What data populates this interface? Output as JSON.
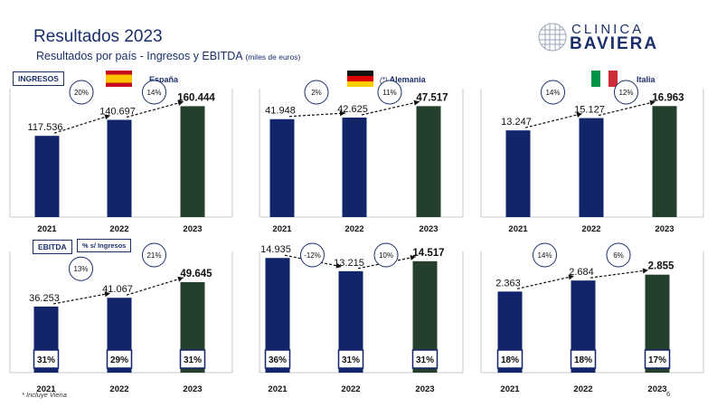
{
  "header": {
    "title": "Resultados 2023",
    "subtitle": "Resultados por país - Ingresos y EBITDA",
    "subtitle_unit": "(miles de euros)",
    "logo_line1": "CLINICA",
    "logo_line2": "BAVIERA"
  },
  "section_tags": {
    "ingresos": "INGRESOS",
    "ebitda": "EBITDA",
    "ebitda_pct": "% s/ Ingresos"
  },
  "countries": {
    "spain": "España",
    "germany": "Alemania",
    "germany_note": "(*)",
    "italy": "Italia"
  },
  "footnote": "* Incluye Viena",
  "page_number": "6",
  "colors": {
    "navy": "#12256b",
    "green": "#243f2c",
    "title": "#1b2f6b"
  },
  "chart_data": [
    {
      "type": "bar",
      "id": "ingresos-spain",
      "categories": [
        "2021",
        "2022",
        "2023"
      ],
      "values": [
        117536,
        140697,
        160444
      ],
      "labels": [
        "117.536",
        "140.697",
        "160.444"
      ],
      "growth": [
        "20%",
        "14%"
      ],
      "ylim": [
        0,
        178000
      ]
    },
    {
      "type": "bar",
      "id": "ingresos-germany",
      "categories": [
        "2021",
        "2022",
        "2023"
      ],
      "values": [
        41948,
        42625,
        47517
      ],
      "labels": [
        "41.948",
        "42.625",
        "47.517"
      ],
      "growth": [
        "2%",
        "11%"
      ],
      "ylim": [
        0,
        52700
      ]
    },
    {
      "type": "bar",
      "id": "ingresos-italy",
      "categories": [
        "2021",
        "2022",
        "2023"
      ],
      "values": [
        13247,
        15127,
        16963
      ],
      "labels": [
        "13.247",
        "15.127",
        "16.963"
      ],
      "growth": [
        "14%",
        "12%"
      ],
      "ylim": [
        0,
        18800
      ]
    },
    {
      "type": "bar",
      "id": "ebitda-spain",
      "categories": [
        "2021",
        "2022",
        "2023"
      ],
      "values": [
        36253,
        41067,
        49645
      ],
      "labels": [
        "36.253",
        "41.067",
        "49.645"
      ],
      "growth": [
        "13%",
        "21%"
      ],
      "margins": [
        "31%",
        "29%",
        "31%"
      ],
      "ylim": [
        0,
        64000
      ]
    },
    {
      "type": "bar",
      "id": "ebitda-germany",
      "categories": [
        "2021",
        "2022",
        "2023"
      ],
      "values": [
        14935,
        13215,
        14517
      ],
      "labels": [
        "14.935",
        "13.215",
        "14.517"
      ],
      "growth": [
        "-12%",
        "10%"
      ],
      "margins": [
        "36%",
        "31%",
        "31%"
      ],
      "ylim": [
        0,
        15200
      ]
    },
    {
      "type": "bar",
      "id": "ebitda-italy",
      "categories": [
        "2021",
        "2022",
        "2023"
      ],
      "values": [
        2363,
        2684,
        2855
      ],
      "labels": [
        "2.363",
        "2.684",
        "2.855"
      ],
      "growth": [
        "14%",
        "6%"
      ],
      "margins": [
        "18%",
        "18%",
        "17%"
      ],
      "ylim": [
        0,
        3400
      ]
    }
  ]
}
